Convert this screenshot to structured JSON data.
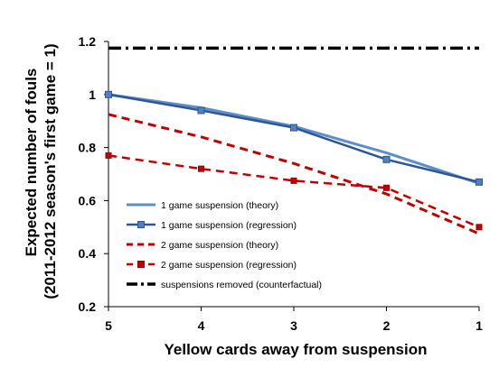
{
  "chart_data": {
    "type": "line",
    "title": "",
    "xlabel": "Yellow cards away from suspension",
    "ylabel_line1": "Expected number of fouls",
    "ylabel_line2": "(2011-2012 season's first game = 1)",
    "x": [
      5,
      4,
      3,
      2,
      1
    ],
    "x_tick_labels": [
      "5",
      "4",
      "3",
      "2",
      "1"
    ],
    "x_reversed": true,
    "ylim": [
      0.2,
      1.2
    ],
    "y_ticks": [
      0.2,
      0.4,
      0.6,
      0.8,
      1.0,
      1.2
    ],
    "y_tick_labels": [
      "0.2",
      "0.4",
      "0.6",
      "0.8",
      "1",
      "1.2"
    ],
    "grid": false,
    "legend_position": "bottom-left inside plot",
    "series": [
      {
        "name": "1 game suspension (theory)",
        "values": [
          1.0,
          0.95,
          0.88,
          0.78,
          0.665
        ],
        "color": "#5B8FC9",
        "style": "solid",
        "markers": false
      },
      {
        "name": "1 game suspension (regression)",
        "values": [
          1.0,
          0.94,
          0.875,
          0.755,
          0.67
        ],
        "color": "#2E5597",
        "style": "solid",
        "markers": true
      },
      {
        "name": "2 game suspension (theory)",
        "values": [
          0.925,
          0.84,
          0.74,
          0.625,
          0.475
        ],
        "color": "#C00000",
        "style": "dashed",
        "markers": false
      },
      {
        "name": "2 game suspension (regression)",
        "values": [
          0.77,
          0.72,
          0.675,
          0.648,
          0.5
        ],
        "color": "#C00000",
        "style": "dashed",
        "markers": true
      },
      {
        "name": "suspensions removed (counterfactual)",
        "values": [
          1.175,
          1.175,
          1.175,
          1.175,
          1.175
        ],
        "color": "#000000",
        "style": "dashdot",
        "markers": false
      }
    ]
  }
}
